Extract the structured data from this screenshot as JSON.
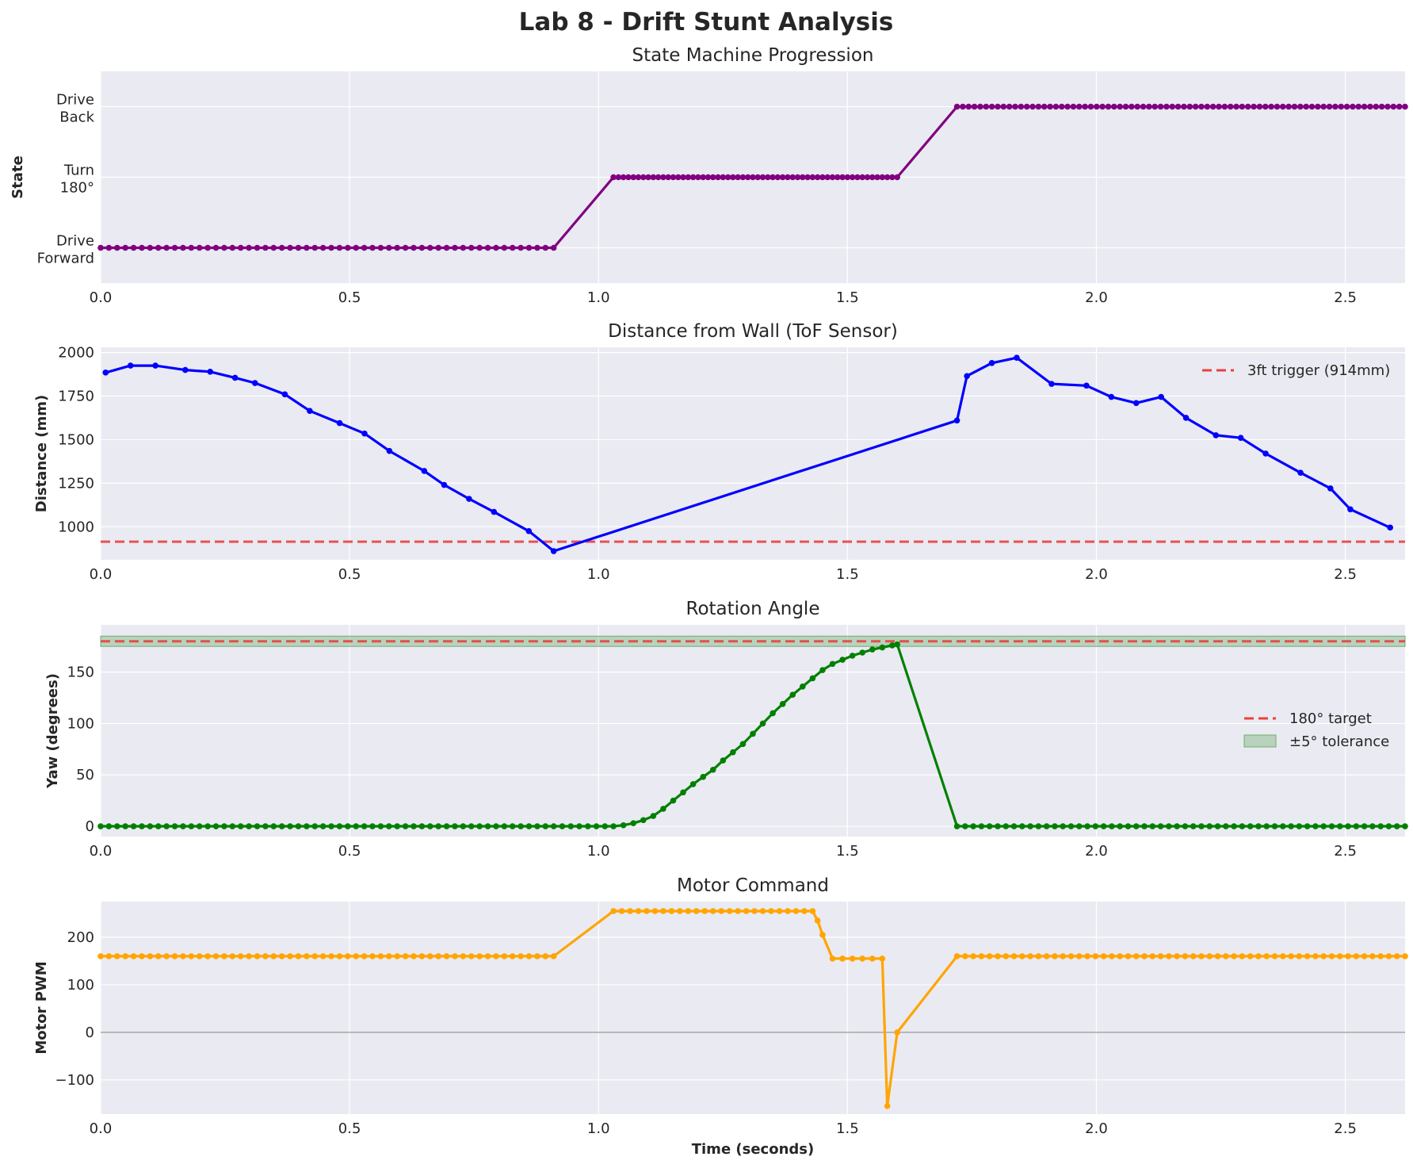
{
  "figure": {
    "title": "Lab 8 - Drift Stunt Analysis",
    "xlabel": "Time (seconds)"
  },
  "chart_data": [
    {
      "type": "line",
      "title": "State Machine Progression",
      "xlabel": "",
      "ylabel": "State",
      "xlim": [
        0,
        2.62
      ],
      "ylim": [
        -0.5,
        2.5
      ],
      "xticks": [
        "0.0",
        "0.5",
        "1.0",
        "1.5",
        "2.0",
        "2.5"
      ],
      "yticks": [
        {
          "value": 0,
          "label": [
            "Drive",
            "Forward"
          ]
        },
        {
          "value": 1,
          "label": [
            "Turn",
            "180°"
          ]
        },
        {
          "value": 2,
          "label": [
            "Drive",
            "Back"
          ]
        }
      ],
      "grid": true,
      "series": [
        {
          "color": "#800080",
          "x_range": [
            0.0,
            0.91
          ],
          "points": 56,
          "value": 0
        },
        {
          "color": "#800080",
          "x_range": [
            1.03,
            1.6
          ],
          "points": 58,
          "value": 1
        },
        {
          "color": "#800080",
          "x_range": [
            1.72,
            2.62
          ],
          "points": 78,
          "value": 2
        }
      ]
    },
    {
      "type": "line",
      "title": "Distance from Wall (ToF Sensor)",
      "xlabel": "",
      "ylabel": "Distance (mm)",
      "xlim": [
        0,
        2.62
      ],
      "ylim": [
        810,
        2030
      ],
      "xticks": [
        "0.0",
        "0.5",
        "1.0",
        "1.5",
        "2.0",
        "2.5"
      ],
      "yticks": [
        "1000",
        "1250",
        "1500",
        "1750",
        "2000"
      ],
      "grid": true,
      "legend": "upper-right",
      "series": [
        {
          "color": "#0000ff",
          "x": [
            0.01,
            0.06,
            0.11,
            0.17,
            0.22,
            0.27,
            0.31,
            0.37,
            0.42,
            0.48,
            0.53,
            0.58,
            0.65,
            0.69,
            0.74,
            0.79,
            0.86,
            0.91,
            1.72,
            1.74,
            1.79,
            1.84,
            1.91,
            1.98,
            2.03,
            2.08,
            2.13,
            2.18,
            2.24,
            2.29,
            2.34,
            2.41,
            2.47,
            2.51,
            2.59
          ],
          "y": [
            1885,
            1925,
            1925,
            1900,
            1890,
            1855,
            1825,
            1760,
            1665,
            1595,
            1535,
            1435,
            1320,
            1240,
            1160,
            1085,
            975,
            860,
            1610,
            1865,
            1940,
            1970,
            1820,
            1810,
            1745,
            1710,
            1745,
            1625,
            1525,
            1510,
            1420,
            1310,
            1220,
            1100,
            995
          ]
        }
      ],
      "reference": {
        "value": 914,
        "label": "3ft trigger (914mm)",
        "color": "#e8413f"
      }
    },
    {
      "type": "line",
      "title": "Rotation Angle",
      "xlabel": "",
      "ylabel": "Yaw (degrees)",
      "xlim": [
        0,
        2.62
      ],
      "ylim": [
        -10,
        196
      ],
      "xticks": [
        "0.0",
        "0.5",
        "1.0",
        "1.5",
        "2.0",
        "2.5"
      ],
      "yticks": [
        "0",
        "50",
        "100",
        "150"
      ],
      "grid": true,
      "legend": "center-right",
      "series": [
        {
          "color": "#008000",
          "x": [
            0.0,
            0.91,
            1.03,
            1.05,
            1.07,
            1.09,
            1.11,
            1.13,
            1.15,
            1.17,
            1.19,
            1.21,
            1.23,
            1.25,
            1.27,
            1.29,
            1.31,
            1.33,
            1.35,
            1.37,
            1.39,
            1.41,
            1.43,
            1.45,
            1.47,
            1.49,
            1.51,
            1.53,
            1.55,
            1.57,
            1.59,
            1.6,
            1.72,
            2.62
          ],
          "y": [
            0,
            0,
            0,
            1,
            3,
            6,
            10,
            17,
            25,
            33,
            41,
            48,
            55,
            64,
            72,
            80,
            90,
            100,
            110,
            119,
            128,
            136,
            144,
            152,
            158,
            162,
            166,
            169,
            172,
            174,
            176,
            177,
            0,
            0
          ]
        }
      ],
      "reference": {
        "value": 180,
        "label": "180° target",
        "color": "#e8413f"
      },
      "band": {
        "range": [
          175,
          185
        ],
        "label": "±5° tolerance",
        "color": "#6fae6f"
      }
    },
    {
      "type": "line",
      "title": "Motor Command",
      "xlabel": "Time (seconds)",
      "ylabel": "Motor PWM",
      "xlim": [
        0,
        2.62
      ],
      "ylim": [
        -172,
        275
      ],
      "xticks": [
        "0.0",
        "0.5",
        "1.0",
        "1.5",
        "2.0",
        "2.5"
      ],
      "yticks": [
        "−100",
        "0",
        "100",
        "200"
      ],
      "grid": true,
      "series": [
        {
          "color": "#ffa500",
          "x": [
            0.0,
            0.91,
            1.03,
            1.43,
            1.44,
            1.45,
            1.47,
            1.49,
            1.51,
            1.53,
            1.55,
            1.57,
            1.58,
            1.6,
            1.72,
            2.62
          ],
          "y": [
            160,
            160,
            255,
            255,
            235,
            205,
            155,
            155,
            155,
            155,
            155,
            155,
            -155,
            0,
            160,
            160
          ]
        }
      ],
      "reference": {
        "value": 0,
        "color": "#7f7f7f"
      }
    }
  ]
}
